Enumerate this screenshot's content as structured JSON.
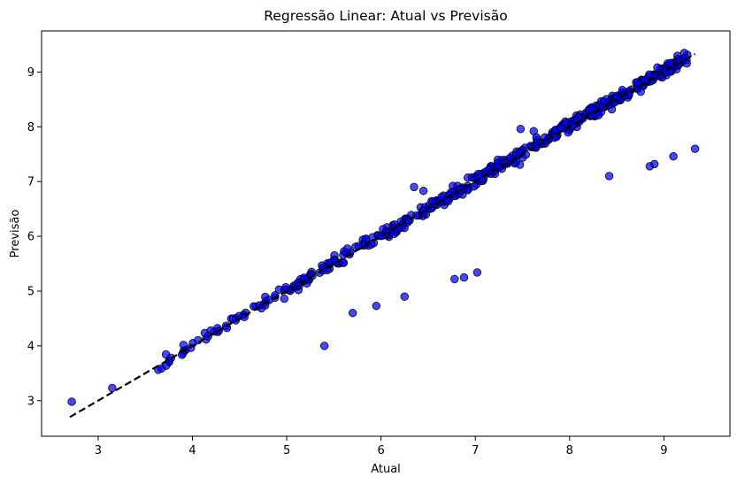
{
  "chart_data": {
    "type": "scatter",
    "title": "Regressão Linear: Atual vs Previsão",
    "xlabel": "Atual",
    "ylabel": "Previsão",
    "xlim": [
      2.4,
      9.7
    ],
    "ylim": [
      2.35,
      9.75
    ],
    "xticks": [
      3,
      4,
      5,
      6,
      7,
      8,
      9
    ],
    "yticks": [
      3,
      4,
      5,
      6,
      7,
      8,
      9
    ],
    "grid": false,
    "colors": {
      "marker_fill": "#0000ff",
      "marker_edge": "#000000",
      "reference_line": "#000000"
    },
    "reference_line": {
      "style": "dashed",
      "x": [
        2.7,
        9.33
      ],
      "y": [
        2.7,
        9.33
      ]
    },
    "outliers": [
      {
        "x": 2.72,
        "y": 2.98
      },
      {
        "x": 3.15,
        "y": 3.23
      },
      {
        "x": 5.4,
        "y": 4.0
      },
      {
        "x": 5.7,
        "y": 4.6
      },
      {
        "x": 5.95,
        "y": 4.73
      },
      {
        "x": 6.25,
        "y": 4.9
      },
      {
        "x": 6.78,
        "y": 5.22
      },
      {
        "x": 6.88,
        "y": 5.25
      },
      {
        "x": 7.02,
        "y": 5.34
      },
      {
        "x": 8.42,
        "y": 7.1
      },
      {
        "x": 8.85,
        "y": 7.28
      },
      {
        "x": 8.9,
        "y": 7.32
      },
      {
        "x": 9.1,
        "y": 7.46
      },
      {
        "x": 9.33,
        "y": 7.6
      },
      {
        "x": 6.35,
        "y": 6.9
      },
      {
        "x": 6.45,
        "y": 6.83
      },
      {
        "x": 7.48,
        "y": 7.96
      },
      {
        "x": 7.62,
        "y": 7.92
      }
    ],
    "trend_sample": {
      "x_min": 3.5,
      "x_max": 9.25,
      "count": 520,
      "noise": 0.06,
      "y_offset": 0.02
    }
  }
}
